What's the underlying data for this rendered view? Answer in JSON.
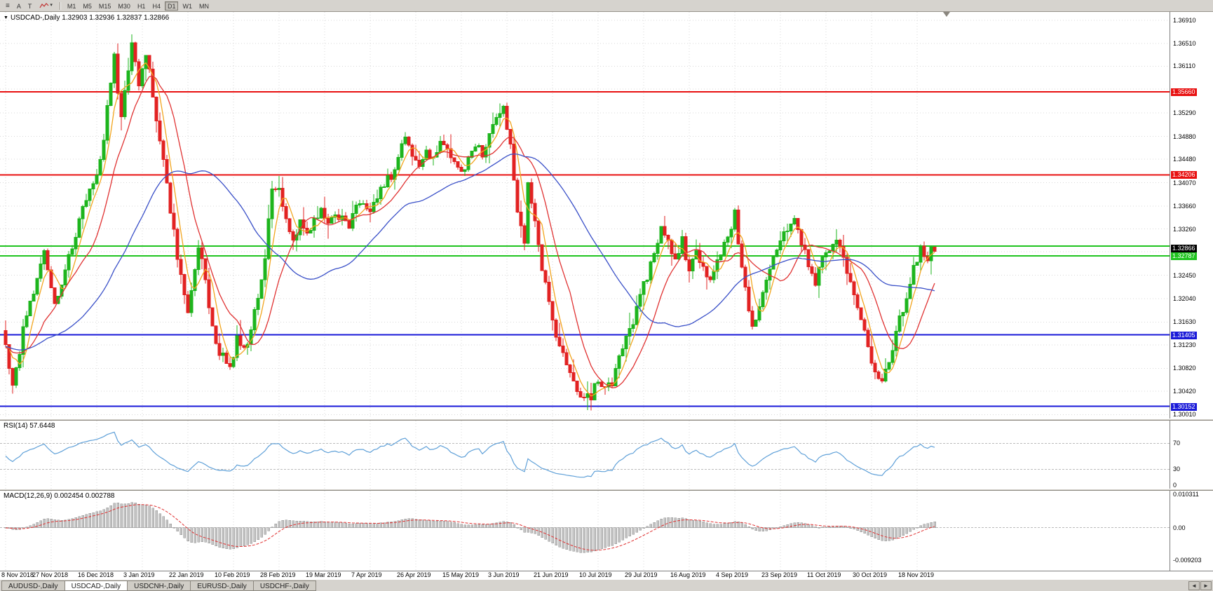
{
  "toolbar": {
    "icons": [
      {
        "name": "chart-bars-icon",
        "glyph": "≡"
      },
      {
        "name": "auto-scroll-button",
        "glyph": "A"
      },
      {
        "name": "text-tool-button",
        "glyph": "T"
      },
      {
        "name": "line-style-icon",
        "glyph": ""
      },
      {
        "name": "dropdown-arrow-icon",
        "glyph": "▾"
      }
    ],
    "timeframes": [
      {
        "label": "M1",
        "active": false
      },
      {
        "label": "M5",
        "active": false
      },
      {
        "label": "M15",
        "active": false
      },
      {
        "label": "M30",
        "active": false
      },
      {
        "label": "H1",
        "active": false
      },
      {
        "label": "H4",
        "active": false
      },
      {
        "label": "D1",
        "active": true
      },
      {
        "label": "W1",
        "active": false
      },
      {
        "label": "MN",
        "active": false
      }
    ]
  },
  "chart_header": {
    "collapse_arrow": "▼",
    "title": "USDCAD-,Daily",
    "ohlc": "1.32903 1.32936 1.32837 1.32866"
  },
  "rsi_panel": {
    "label": "RSI(14) 57.6448"
  },
  "macd_panel": {
    "label": "MACD(12,26,9) 0.002454 0.002788"
  },
  "tabs": {
    "items": [
      {
        "label": "AUDUSD-,Daily",
        "active": false
      },
      {
        "label": "USDCAD-,Daily",
        "active": true
      },
      {
        "label": "USDCNH-,Daily",
        "active": false
      },
      {
        "label": "EURUSD-,Daily",
        "active": false
      },
      {
        "label": "USDCHF-,Daily",
        "active": false
      }
    ],
    "scroll_left": "◄",
    "scroll_right": "►"
  },
  "chart_data": {
    "type": "candlestick",
    "symbol": "USDCAD",
    "period": "Daily",
    "ohlc_current": {
      "open": 1.32903,
      "high": 1.32936,
      "low": 1.32837,
      "close": 1.32866
    },
    "last_close": 1.32866,
    "num_candles": 266,
    "candles_per_xtick": 13,
    "x_tick_labels": [
      "8 Nov 2018",
      "27 Nov 2018",
      "16 Dec 2018",
      "3 Jan 2019",
      "22 Jan 2019",
      "10 Feb 2019",
      "28 Feb 2019",
      "19 Mar 2019",
      "7 Apr 2019",
      "26 Apr 2019",
      "15 May 2019",
      "3 Jun 2019",
      "21 Jun 2019",
      "10 Jul 2019",
      "29 Jul 2019",
      "16 Aug 2019",
      "4 Sep 2019",
      "23 Sep 2019",
      "11 Oct 2019",
      "30 Oct 2019",
      "18 Nov 2019"
    ],
    "price_axis": {
      "max": 1.3706,
      "min": 1.2994,
      "tick_labels": [
        "1.36910",
        "1.36510",
        "1.36110",
        "1.35290",
        "1.34880",
        "1.34480",
        "1.34070",
        "1.33660",
        "1.33260",
        "1.32450",
        "1.32040",
        "1.31630",
        "1.31230",
        "1.30820",
        "1.30420",
        "1.30010"
      ],
      "grid_values": [
        1.3691,
        1.3651,
        1.3611,
        1.3571,
        1.3529,
        1.3488,
        1.3448,
        1.3407,
        1.3366,
        1.3326,
        1.3286,
        1.3245,
        1.3204,
        1.3163,
        1.3123,
        1.3082,
        1.3042,
        1.3001
      ]
    },
    "levels": [
      {
        "value": 1.3566,
        "label": "1.35660",
        "color": "#e81010",
        "line_width": 2
      },
      {
        "value": 1.34206,
        "label": "1.34206",
        "color": "#e81010",
        "line_width": 2
      },
      {
        "value": 1.3296,
        "label": "",
        "color": "#1fc41f",
        "line_width": 2
      },
      {
        "value": 1.32787,
        "label": "1.32787",
        "color": "#1fc41f",
        "line_width": 2
      },
      {
        "value": 1.31405,
        "label": "1.31405",
        "color": "#1a1ad8",
        "line_width": 2
      },
      {
        "value": 1.30152,
        "label": "1.30152",
        "color": "#1a1ad8",
        "line_width": 2
      }
    ],
    "current_price_label": {
      "value": 1.32866,
      "label": "1.32866",
      "bg": "#000000"
    },
    "candle_colors": {
      "up": "#1db51d",
      "down": "#e22222"
    },
    "grid_color": "#d8d8d8",
    "moving_averages": [
      {
        "name": "ma-fast",
        "type": "sma",
        "period": 5,
        "color": "#f2a51e"
      },
      {
        "name": "ma-mid",
        "type": "sma",
        "period": 13,
        "color": "#e03232"
      },
      {
        "name": "ma-slow",
        "type": "sma",
        "period": 40,
        "color": "#3a50c8"
      }
    ],
    "rsi": {
      "period": 14,
      "value_display": "57.6448",
      "levels": [
        70,
        30
      ],
      "axis_labels": [
        {
          "value": 70,
          "label": "70"
        },
        {
          "value": 30,
          "label": "30"
        },
        {
          "value": 0,
          "label": "0"
        }
      ],
      "color": "#5fa0d8",
      "range_max": 105,
      "range_min": 0
    },
    "macd": {
      "fast": 12,
      "slow": 26,
      "signal": 9,
      "values_display": "0.002454 0.002788",
      "axis_labels": [
        {
          "value": 0.010311,
          "label": "0.010311"
        },
        {
          "value": 0,
          "label": "0.00"
        },
        {
          "value": -0.009203,
          "label": "-0.009203"
        }
      ],
      "range_max": 0.0105,
      "range_min": -0.0122,
      "histogram_color": "#c4c4c4",
      "histogram_stroke": "#8f8f8f",
      "signal_color": "#e03232"
    },
    "close_waypoints": [
      [
        0,
        1.312
      ],
      [
        2,
        1.3055
      ],
      [
        4,
        1.311
      ],
      [
        5,
        1.315
      ],
      [
        8,
        1.3215
      ],
      [
        11,
        1.329
      ],
      [
        13,
        1.323
      ],
      [
        14,
        1.3195
      ],
      [
        17,
        1.3255
      ],
      [
        20,
        1.332
      ],
      [
        23,
        1.3375
      ],
      [
        26,
        1.342
      ],
      [
        28,
        1.348
      ],
      [
        30,
        1.359
      ],
      [
        31,
        1.3625
      ],
      [
        33,
        1.352
      ],
      [
        35,
        1.36
      ],
      [
        36,
        1.3655
      ],
      [
        38,
        1.3585
      ],
      [
        40,
        1.3635
      ],
      [
        42,
        1.356
      ],
      [
        45,
        1.3445
      ],
      [
        48,
        1.332
      ],
      [
        50,
        1.324
      ],
      [
        52,
        1.3185
      ],
      [
        54,
        1.3255
      ],
      [
        55,
        1.33
      ],
      [
        57,
        1.323
      ],
      [
        59,
        1.315
      ],
      [
        61,
        1.311
      ],
      [
        64,
        1.3085
      ],
      [
        66,
        1.313
      ],
      [
        68,
        1.311
      ],
      [
        70,
        1.315
      ],
      [
        72,
        1.3205
      ],
      [
        74,
        1.328
      ],
      [
        76,
        1.339
      ],
      [
        78,
        1.3405
      ],
      [
        80,
        1.334
      ],
      [
        82,
        1.33
      ],
      [
        84,
        1.3345
      ],
      [
        86,
        1.332
      ],
      [
        88,
        1.334
      ],
      [
        90,
        1.3365
      ],
      [
        92,
        1.333
      ],
      [
        94,
        1.3355
      ],
      [
        96,
        1.334
      ],
      [
        98,
        1.333
      ],
      [
        100,
        1.3365
      ],
      [
        102,
        1.3375
      ],
      [
        104,
        1.335
      ],
      [
        106,
        1.338
      ],
      [
        108,
        1.3405
      ],
      [
        110,
        1.342
      ],
      [
        112,
        1.3455
      ],
      [
        114,
        1.349
      ],
      [
        116,
        1.346
      ],
      [
        118,
        1.344
      ],
      [
        120,
        1.347
      ],
      [
        122,
        1.3445
      ],
      [
        124,
        1.3485
      ],
      [
        126,
        1.3465
      ],
      [
        128,
        1.344
      ],
      [
        130,
        1.3425
      ],
      [
        132,
        1.345
      ],
      [
        134,
        1.3475
      ],
      [
        136,
        1.346
      ],
      [
        138,
        1.349
      ],
      [
        140,
        1.3515
      ],
      [
        142,
        1.3545
      ],
      [
        144,
        1.347
      ],
      [
        146,
        1.336
      ],
      [
        148,
        1.33
      ],
      [
        149,
        1.3415
      ],
      [
        151,
        1.334
      ],
      [
        153,
        1.3255
      ],
      [
        155,
        1.3195
      ],
      [
        157,
        1.3145
      ],
      [
        159,
        1.3105
      ],
      [
        161,
        1.307
      ],
      [
        163,
        1.3045
      ],
      [
        165,
        1.3025
      ],
      [
        167,
        1.3035
      ],
      [
        169,
        1.306
      ],
      [
        171,
        1.3045
      ],
      [
        173,
        1.3055
      ],
      [
        175,
        1.3095
      ],
      [
        177,
        1.313
      ],
      [
        179,
        1.3165
      ],
      [
        181,
        1.3205
      ],
      [
        183,
        1.3245
      ],
      [
        185,
        1.3285
      ],
      [
        187,
        1.3325
      ],
      [
        189,
        1.3305
      ],
      [
        191,
        1.3265
      ],
      [
        193,
        1.3305
      ],
      [
        195,
        1.325
      ],
      [
        197,
        1.329
      ],
      [
        199,
        1.326
      ],
      [
        201,
        1.323
      ],
      [
        203,
        1.327
      ],
      [
        205,
        1.33
      ],
      [
        207,
        1.333
      ],
      [
        208,
        1.336
      ],
      [
        209,
        1.33
      ],
      [
        211,
        1.322
      ],
      [
        213,
        1.316
      ],
      [
        215,
        1.319
      ],
      [
        217,
        1.324
      ],
      [
        219,
        1.328
      ],
      [
        221,
        1.3305
      ],
      [
        223,
        1.332
      ],
      [
        225,
        1.334
      ],
      [
        227,
        1.33
      ],
      [
        229,
        1.3265
      ],
      [
        231,
        1.3235
      ],
      [
        233,
        1.327
      ],
      [
        235,
        1.3295
      ],
      [
        237,
        1.3305
      ],
      [
        239,
        1.327
      ],
      [
        241,
        1.324
      ],
      [
        243,
        1.319
      ],
      [
        245,
        1.314
      ],
      [
        247,
        1.3095
      ],
      [
        249,
        1.306
      ],
      [
        251,
        1.3075
      ],
      [
        253,
        1.312
      ],
      [
        255,
        1.3165
      ],
      [
        257,
        1.321
      ],
      [
        259,
        1.3255
      ],
      [
        261,
        1.329
      ],
      [
        263,
        1.327
      ],
      [
        264,
        1.329
      ],
      [
        265,
        1.32866
      ]
    ]
  }
}
